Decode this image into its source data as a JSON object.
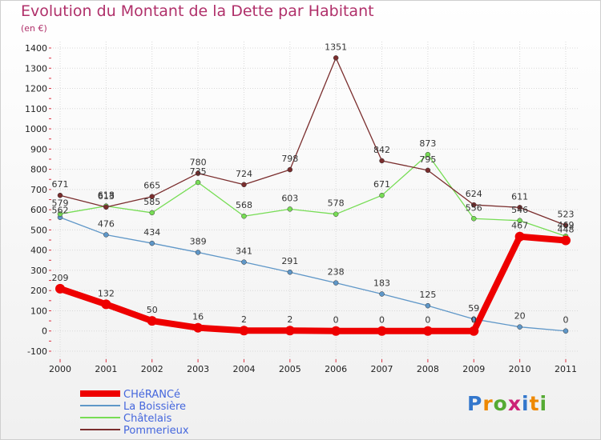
{
  "title": "Evolution du Montant de la Dette par Habitant",
  "unit": "(en €)",
  "brand": "Proxiti",
  "chart_data": {
    "type": "line",
    "categories": [
      "2000",
      "2001",
      "2002",
      "2003",
      "2004",
      "2005",
      "2006",
      "2007",
      "2008",
      "2009",
      "2010",
      "2011"
    ],
    "ylim": [
      -100,
      1400
    ],
    "yticks": [
      -100,
      0,
      100,
      200,
      300,
      400,
      500,
      600,
      700,
      800,
      900,
      1000,
      1100,
      1200,
      1300,
      1400
    ],
    "grid": true,
    "legend_position": "bottom-left",
    "series": [
      {
        "name": "CHéRANCé",
        "color": "#ee0000",
        "width": 8,
        "marker": 6,
        "values": [
          209,
          132,
          50,
          16,
          2,
          2,
          0,
          0,
          0,
          0,
          467,
          448
        ],
        "labels": [
          "209",
          "132",
          "50",
          "16",
          "2",
          "2",
          "0",
          "0",
          "0",
          "0",
          "467",
          "448"
        ]
      },
      {
        "name": "La Boissière",
        "color": "#5f97c8",
        "width": 1.3,
        "marker": 3,
        "values": [
          562,
          476,
          434,
          389,
          341,
          291,
          238,
          183,
          125,
          59,
          20,
          0
        ],
        "labels": [
          "562",
          "476",
          "434",
          "389",
          "341",
          "291",
          "238",
          "183",
          "125",
          "59",
          "20",
          "0"
        ]
      },
      {
        "name": "Châtelais",
        "color": "#77dd55",
        "width": 1.3,
        "marker": 3,
        "values": [
          579,
          618,
          585,
          735,
          568,
          603,
          578,
          671,
          873,
          556,
          546,
          469
        ],
        "labels": [
          "579",
          "618",
          "585",
          "735",
          "568",
          "603",
          "578",
          "671",
          "873",
          "556",
          "546",
          "469"
        ]
      },
      {
        "name": "Pommerieux",
        "color": "#7a2d2d",
        "width": 1.3,
        "marker": 3,
        "values": [
          671,
          613,
          665,
          780,
          724,
          798,
          1351,
          842,
          795,
          624,
          611,
          523
        ],
        "labels": [
          "671",
          "613",
          "665",
          "780",
          "724",
          "798",
          "1351",
          "842",
          "795",
          "624",
          "611",
          "523"
        ]
      }
    ]
  }
}
